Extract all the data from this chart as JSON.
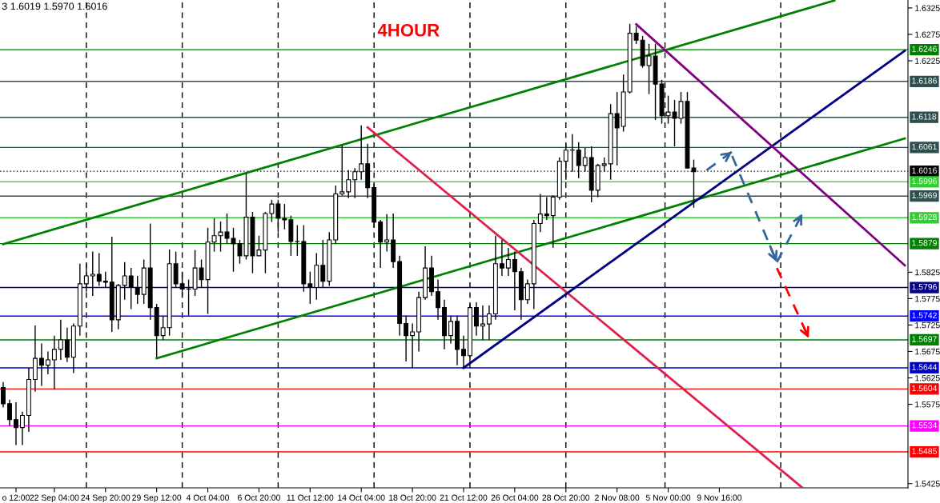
{
  "chart_data": {
    "type": "candlestick",
    "title": "4HOUR",
    "annotations": [
      "3 1.6019 1.5970 1.6016"
    ],
    "categories": [
      null,
      null,
      "o 12:00",
      null,
      null,
      null,
      null,
      null,
      "22 Sep 04:00",
      null,
      null,
      null,
      null,
      null,
      null,
      null,
      "24 Sep 20:00",
      null,
      null,
      null,
      null,
      null,
      null,
      null,
      "29 Sep 12:00",
      null,
      null,
      null,
      null,
      null,
      null,
      null,
      "4 Oct 04:00",
      null,
      null,
      null,
      null,
      null,
      null,
      null,
      "6 Oct 20:00",
      null,
      null,
      null,
      null,
      null,
      null,
      null,
      "11 Oct 12:00",
      null,
      null,
      null,
      null,
      null,
      null,
      null,
      "14 Oct 04:00",
      null,
      null,
      null,
      null,
      null,
      null,
      null,
      "18 Oct 20:00",
      null,
      null,
      null,
      null,
      null,
      null,
      null,
      "21 Oct 12:00",
      null,
      null,
      null,
      null,
      null,
      null,
      null,
      "26 Oct 04:00",
      null,
      null,
      null,
      null,
      null,
      null,
      null,
      "28 Oct 20:00",
      null,
      null,
      null,
      null,
      null,
      null,
      null,
      "2 Nov 08:00",
      null,
      null,
      null,
      null,
      null,
      null,
      null,
      "5 Nov 00:00",
      null,
      null,
      null,
      null,
      null,
      null,
      null,
      "9 Nov 16:00",
      null,
      null,
      null,
      null,
      null,
      null,
      null,
      null,
      null,
      null,
      null,
      null,
      null,
      null,
      null,
      null,
      null,
      null,
      null,
      null,
      null,
      null,
      null,
      null,
      null,
      null,
      null,
      null,
      null
    ],
    "ohlc": [
      [
        1.5607,
        1.5617,
        1.5569,
        1.5576
      ],
      [
        1.5576,
        1.5584,
        1.5534,
        1.5546
      ],
      [
        1.5546,
        1.5579,
        1.5498,
        1.5531
      ],
      [
        1.5531,
        1.5561,
        1.5498,
        1.5554
      ],
      [
        1.5554,
        1.5644,
        1.5523,
        1.5622
      ],
      [
        1.5622,
        1.5724,
        1.5599,
        1.5662
      ],
      [
        1.5662,
        1.569,
        1.561,
        1.5649
      ],
      [
        1.5649,
        1.5675,
        1.5632,
        1.5659
      ],
      [
        1.5659,
        1.5705,
        1.5603,
        1.5679
      ],
      [
        1.5679,
        1.5735,
        1.5659,
        1.5697
      ],
      [
        1.5697,
        1.572,
        1.5655,
        1.5664
      ],
      [
        1.5664,
        1.5728,
        1.5634,
        1.5723
      ],
      [
        1.5723,
        1.5841,
        1.5705,
        1.5803
      ],
      [
        1.5803,
        1.5841,
        1.5788,
        1.5818
      ],
      [
        1.5818,
        1.5864,
        1.578,
        1.5821
      ],
      [
        1.5821,
        1.5861,
        1.5799,
        1.5808
      ],
      [
        1.5808,
        1.5826,
        1.5796,
        1.5806
      ],
      [
        1.5806,
        1.5892,
        1.5712,
        1.5735
      ],
      [
        1.5735,
        1.5803,
        1.5717,
        1.58
      ],
      [
        1.58,
        1.5844,
        1.5773,
        1.5818
      ],
      [
        1.5818,
        1.5833,
        1.5755,
        1.5796
      ],
      [
        1.5796,
        1.5818,
        1.5765,
        1.5783
      ],
      [
        1.5783,
        1.5849,
        1.5765,
        1.5833
      ],
      [
        1.5833,
        1.5917,
        1.5735,
        1.5758
      ],
      [
        1.5758,
        1.5765,
        1.5664,
        1.5705
      ],
      [
        1.5705,
        1.5743,
        1.5697,
        1.572
      ],
      [
        1.572,
        1.5868,
        1.5705,
        1.5841
      ],
      [
        1.5841,
        1.5864,
        1.5796,
        1.5803
      ],
      [
        1.5803,
        1.5826,
        1.578,
        1.5793
      ],
      [
        1.5793,
        1.5811,
        1.5743,
        1.5793
      ],
      [
        1.5793,
        1.5867,
        1.578,
        1.5833
      ],
      [
        1.5833,
        1.5849,
        1.5796,
        1.5811
      ],
      [
        1.5811,
        1.5909,
        1.5746,
        1.5882
      ],
      [
        1.5882,
        1.5927,
        1.5864,
        1.5894
      ],
      [
        1.5894,
        1.5921,
        1.5864,
        1.5901
      ],
      [
        1.5901,
        1.5936,
        1.5879,
        1.5889
      ],
      [
        1.5889,
        1.5909,
        1.5826,
        1.5879
      ],
      [
        1.5879,
        1.5886,
        1.5841,
        1.5856
      ],
      [
        1.5856,
        1.6012,
        1.5849,
        1.5929
      ],
      [
        1.5929,
        1.5939,
        1.5823,
        1.5856
      ],
      [
        1.5856,
        1.5894,
        1.5856,
        1.5867
      ],
      [
        1.5867,
        1.5939,
        1.5823,
        1.5936
      ],
      [
        1.5936,
        1.5962,
        1.592,
        1.5954
      ],
      [
        1.5954,
        1.5962,
        1.5901,
        1.5927
      ],
      [
        1.5927,
        1.5954,
        1.5906,
        1.5924
      ],
      [
        1.5924,
        1.5932,
        1.5856,
        1.5883
      ],
      [
        1.5883,
        1.5914,
        1.5856,
        1.5883
      ],
      [
        1.5883,
        1.5914,
        1.5788,
        1.5803
      ],
      [
        1.5803,
        1.5826,
        1.5765,
        1.5796
      ],
      [
        1.5796,
        1.5861,
        1.5773,
        1.5838
      ],
      [
        1.5838,
        1.5886,
        1.5796,
        1.5808
      ],
      [
        1.5808,
        1.5901,
        1.5799,
        1.5886
      ],
      [
        1.5886,
        1.5989,
        1.5879,
        1.5973
      ],
      [
        1.5973,
        1.6065,
        1.597,
        1.5977
      ],
      [
        1.5977,
        1.6018,
        1.5965,
        1.6
      ],
      [
        1.6,
        1.6022,
        1.5965,
        1.6015
      ],
      [
        1.6015,
        1.6103,
        1.6,
        1.603
      ],
      [
        1.603,
        1.6068,
        1.5965,
        1.5985
      ],
      [
        1.5985,
        1.5992,
        1.5909,
        1.592
      ],
      [
        1.592,
        1.5924,
        1.5833,
        1.5882
      ],
      [
        1.5882,
        1.5935,
        1.5864,
        1.5886
      ],
      [
        1.5886,
        1.5936,
        1.5833,
        1.5845
      ],
      [
        1.5845,
        1.5856,
        1.5705,
        1.5728
      ],
      [
        1.5728,
        1.5743,
        1.5656,
        1.5705
      ],
      [
        1.5705,
        1.5728,
        1.5644,
        1.5712
      ],
      [
        1.5712,
        1.5788,
        1.5675,
        1.5777
      ],
      [
        1.5777,
        1.5874,
        1.5773,
        1.5833
      ],
      [
        1.5833,
        1.5856,
        1.578,
        1.5788
      ],
      [
        1.5788,
        1.5811,
        1.5735,
        1.5758
      ],
      [
        1.5758,
        1.5773,
        1.5679,
        1.5705
      ],
      [
        1.5705,
        1.5743,
        1.569,
        1.5732
      ],
      [
        1.5732,
        1.5743,
        1.5649,
        1.5679
      ],
      [
        1.5679,
        1.5705,
        1.5643,
        1.5667
      ],
      [
        1.5667,
        1.5765,
        1.5652,
        1.5758
      ],
      [
        1.5758,
        1.5768,
        1.5705,
        1.5723
      ],
      [
        1.5723,
        1.5762,
        1.5697,
        1.5727
      ],
      [
        1.5727,
        1.5762,
        1.5697,
        1.5746
      ],
      [
        1.5746,
        1.5894,
        1.5735,
        1.5841
      ],
      [
        1.5841,
        1.5886,
        1.5818,
        1.5833
      ],
      [
        1.5833,
        1.5871,
        1.5818,
        1.5849
      ],
      [
        1.5849,
        1.5864,
        1.5753,
        1.5826
      ],
      [
        1.5826,
        1.5833,
        1.5735,
        1.5773
      ],
      [
        1.5773,
        1.5811,
        1.5765,
        1.5803
      ],
      [
        1.5803,
        1.5924,
        1.5755,
        1.5917
      ],
      [
        1.5917,
        1.5973,
        1.5901,
        1.5935
      ],
      [
        1.5935,
        1.5967,
        1.5924,
        1.5932
      ],
      [
        1.5932,
        1.597,
        1.5871,
        1.5967
      ],
      [
        1.5967,
        1.6042,
        1.5962,
        1.6035
      ],
      [
        1.6035,
        1.6068,
        1.6,
        1.6056
      ],
      [
        1.6056,
        1.6086,
        1.6015,
        1.6056
      ],
      [
        1.6056,
        1.6071,
        1.6003,
        1.6027
      ],
      [
        1.6027,
        1.606,
        1.6015,
        1.6042
      ],
      [
        1.6042,
        1.6063,
        1.5957,
        1.598
      ],
      [
        1.598,
        1.603,
        1.5967,
        1.6027
      ],
      [
        1.6027,
        1.6042,
        1.6015,
        1.603
      ],
      [
        1.603,
        1.6143,
        1.6,
        1.6125
      ],
      [
        1.6125,
        1.6166,
        1.6027,
        1.6098
      ],
      [
        1.6101,
        1.6199,
        1.6091,
        1.6166
      ],
      [
        1.6166,
        1.6295,
        1.6163,
        1.6277
      ],
      [
        1.6277,
        1.629,
        1.6257,
        1.6264
      ],
      [
        1.6264,
        1.6272,
        1.6212,
        1.6216
      ],
      [
        1.6216,
        1.6257,
        1.6162,
        1.6234
      ],
      [
        1.6234,
        1.6257,
        1.6113,
        1.6181
      ],
      [
        1.6181,
        1.6189,
        1.6106,
        1.6121
      ],
      [
        1.6121,
        1.6159,
        1.6106,
        1.6128
      ],
      [
        1.6128,
        1.6151,
        1.6063,
        1.6116
      ],
      [
        1.6116,
        1.6166,
        1.6106,
        1.6148
      ],
      [
        1.6148,
        1.6166,
        1.6022,
        1.6022
      ],
      [
        1.6022,
        1.6038,
        1.5947,
        1.6015
      ],
      null,
      null,
      null,
      null,
      null,
      null,
      null,
      null,
      null,
      null,
      null,
      null,
      null,
      null,
      null,
      null,
      null,
      null,
      null,
      null,
      null,
      null,
      null,
      null,
      null,
      null,
      null,
      null,
      null,
      null,
      null,
      null,
      null
    ],
    "ylim": [
      1.5417,
      1.634
    ],
    "yticks": [
      1.5425,
      1.5575,
      1.5625,
      1.5675,
      1.5725,
      1.5775,
      1.5825,
      1.6225,
      1.6275,
      1.6325
    ],
    "series": [
      {
        "type": "line",
        "color": "#008000",
        "line_style": "solid",
        "values": [
          1.5878,
          null,
          null,
          null,
          null,
          null,
          null,
          null,
          null,
          null,
          null,
          null,
          null,
          null,
          null,
          null,
          null,
          null,
          null,
          null,
          null,
          null,
          null,
          null,
          null,
          null,
          null,
          null,
          null,
          null,
          null,
          null,
          null,
          null,
          null,
          null,
          null,
          null,
          null,
          null,
          null,
          null,
          null,
          null,
          null,
          null,
          null,
          null,
          null,
          null,
          null,
          null,
          null,
          null,
          null,
          null,
          null,
          null,
          null,
          null,
          null,
          null,
          null,
          null,
          null,
          null,
          null,
          null,
          null,
          null,
          null,
          null,
          null,
          null,
          null,
          null,
          null,
          null,
          null,
          null,
          null,
          null,
          null,
          null,
          null,
          null,
          null,
          null,
          null,
          null,
          null,
          null,
          null,
          null,
          null,
          null,
          null,
          null,
          null,
          null,
          null,
          null,
          null,
          null,
          null,
          null,
          null,
          null,
          null,
          null,
          null,
          null,
          null,
          null,
          null,
          null,
          null,
          null,
          null,
          null,
          null,
          null,
          null,
          null,
          null,
          null,
          null,
          null,
          null,
          null,
          1.6339,
          null,
          null,
          null,
          null,
          null,
          null,
          null,
          null,
          null,
          null,
          null
        ]
      },
      {
        "type": "line",
        "color": "#008000",
        "line_style": "solid",
        "values": [
          null,
          null,
          null,
          null,
          null,
          null,
          null,
          null,
          null,
          null,
          null,
          null,
          null,
          null,
          null,
          null,
          null,
          null,
          null,
          null,
          null,
          null,
          null,
          null,
          1.5662,
          null,
          null,
          null,
          null,
          null,
          null,
          null,
          null,
          null,
          null,
          null,
          null,
          null,
          null,
          null,
          null,
          null,
          null,
          null,
          null,
          null,
          null,
          null,
          null,
          null,
          null,
          null,
          null,
          null,
          null,
          null,
          null,
          null,
          null,
          null,
          null,
          null,
          null,
          null,
          null,
          null,
          null,
          null,
          null,
          null,
          null,
          null,
          null,
          null,
          null,
          null,
          null,
          null,
          null,
          null,
          null,
          null,
          null,
          null,
          null,
          null,
          null,
          null,
          null,
          null,
          null,
          null,
          null,
          null,
          null,
          null,
          null,
          null,
          null,
          null,
          null,
          null,
          null,
          null,
          null,
          null,
          null,
          null,
          null,
          null,
          null,
          null,
          null,
          null,
          null,
          null,
          null,
          null,
          null,
          null,
          null,
          null,
          null,
          null,
          null,
          null,
          null,
          null,
          null,
          null,
          null,
          null,
          null,
          null,
          null,
          null,
          null,
          null,
          null,
          null,
          null,
          1.6078
        ]
      },
      {
        "type": "line",
        "color": "#e0204a",
        "line_style": "solid",
        "values": [
          null,
          null,
          null,
          null,
          null,
          null,
          null,
          null,
          null,
          null,
          null,
          null,
          null,
          null,
          null,
          null,
          null,
          null,
          null,
          null,
          null,
          null,
          null,
          null,
          null,
          null,
          null,
          null,
          null,
          null,
          null,
          null,
          null,
          null,
          null,
          null,
          null,
          null,
          null,
          null,
          null,
          null,
          null,
          null,
          null,
          null,
          null,
          null,
          null,
          null,
          null,
          null,
          null,
          null,
          null,
          null,
          null,
          1.6099,
          null,
          null,
          null,
          null,
          null,
          null,
          null,
          null,
          null,
          null,
          null,
          null,
          null,
          null,
          null,
          null,
          null,
          null,
          null,
          null,
          null,
          null,
          null,
          null,
          null,
          null,
          null,
          null,
          null,
          null,
          null,
          null,
          null,
          null,
          null,
          null,
          null,
          null,
          null,
          null,
          null,
          null,
          null,
          null,
          null,
          null,
          null,
          null,
          null,
          null,
          null,
          null,
          null,
          null,
          null,
          null,
          null,
          null,
          null,
          null,
          null,
          null,
          null,
          null,
          null,
          null,
          null,
          1.5417,
          null,
          null,
          null,
          null,
          null,
          null,
          null,
          null,
          null,
          null,
          null,
          null,
          null,
          null,
          null,
          null
        ]
      },
      {
        "type": "line",
        "color": "#000080",
        "line_style": "solid",
        "values": [
          null,
          null,
          null,
          null,
          null,
          null,
          null,
          null,
          null,
          null,
          null,
          null,
          null,
          null,
          null,
          null,
          null,
          null,
          null,
          null,
          null,
          null,
          null,
          null,
          null,
          null,
          null,
          null,
          null,
          null,
          null,
          null,
          null,
          null,
          null,
          null,
          null,
          null,
          null,
          null,
          null,
          null,
          null,
          null,
          null,
          null,
          null,
          null,
          null,
          null,
          null,
          null,
          null,
          null,
          null,
          null,
          null,
          null,
          null,
          null,
          null,
          null,
          null,
          null,
          null,
          null,
          null,
          null,
          null,
          null,
          null,
          null,
          1.5644,
          null,
          null,
          null,
          null,
          null,
          null,
          null,
          null,
          null,
          null,
          null,
          null,
          null,
          null,
          null,
          null,
          null,
          null,
          null,
          null,
          null,
          null,
          null,
          null,
          null,
          null,
          null,
          null,
          null,
          null,
          null,
          null,
          null,
          null,
          null,
          null,
          null,
          null,
          null,
          null,
          null,
          null,
          null,
          null,
          null,
          null,
          null,
          null,
          null,
          null,
          null,
          null,
          null,
          null,
          null,
          null,
          null,
          null,
          null,
          null,
          null,
          null,
          null,
          null,
          null,
          null,
          null,
          null,
          1.6244
        ]
      },
      {
        "type": "line",
        "color": "#800080",
        "line_style": "solid",
        "values": [
          null,
          null,
          null,
          null,
          null,
          null,
          null,
          null,
          null,
          null,
          null,
          null,
          null,
          null,
          null,
          null,
          null,
          null,
          null,
          null,
          null,
          null,
          null,
          null,
          null,
          null,
          null,
          null,
          null,
          null,
          null,
          null,
          null,
          null,
          null,
          null,
          null,
          null,
          null,
          null,
          null,
          null,
          null,
          null,
          null,
          null,
          null,
          null,
          null,
          null,
          null,
          null,
          null,
          null,
          null,
          null,
          null,
          null,
          null,
          null,
          null,
          null,
          null,
          null,
          null,
          null,
          null,
          null,
          null,
          null,
          null,
          null,
          null,
          null,
          null,
          null,
          null,
          null,
          null,
          null,
          null,
          null,
          null,
          null,
          null,
          null,
          null,
          null,
          null,
          null,
          null,
          null,
          null,
          null,
          null,
          null,
          null,
          null,
          null,
          1.6294,
          null,
          null,
          null,
          null,
          null,
          null,
          null,
          null,
          null,
          null,
          null,
          null,
          null,
          null,
          null,
          null,
          null,
          null,
          null,
          null,
          null,
          null,
          null,
          null,
          null,
          null,
          null,
          null,
          null,
          null,
          null,
          null,
          null,
          null,
          null,
          null,
          null,
          null,
          null,
          null,
          null,
          1.5838
        ]
      },
      {
        "type": "line",
        "color": "#336699",
        "line_style": "dashed",
        "values": [
          null,
          null,
          null,
          null,
          null,
          null,
          null,
          null,
          null,
          null,
          null,
          null,
          null,
          null,
          null,
          null,
          null,
          null,
          null,
          null,
          null,
          null,
          null,
          null,
          null,
          null,
          null,
          null,
          null,
          null,
          null,
          null,
          null,
          null,
          null,
          null,
          null,
          null,
          null,
          null,
          null,
          null,
          null,
          null,
          null,
          null,
          null,
          null,
          null,
          null,
          null,
          null,
          null,
          null,
          null,
          null,
          null,
          null,
          null,
          null,
          null,
          null,
          null,
          null,
          null,
          null,
          null,
          null,
          null,
          null,
          null,
          null,
          null,
          null,
          null,
          null,
          null,
          null,
          null,
          null,
          null,
          null,
          null,
          null,
          null,
          null,
          null,
          null,
          null,
          null,
          null,
          null,
          null,
          null,
          null,
          null,
          null,
          null,
          null,
          null,
          null,
          null,
          null,
          null,
          null,
          null,
          null,
          null,
          null,
          null,
          1.6018,
          null,
          null,
          null,
          1.6053,
          null,
          null,
          null,
          null,
          null,
          null,
          null,
          null,
          null,
          null,
          null,
          null,
          null,
          null,
          null,
          null,
          null,
          null,
          null,
          null,
          null,
          null,
          null,
          null,
          null,
          null,
          null
        ]
      },
      {
        "type": "line",
        "color": "#336699",
        "line_style": "dashed",
        "values": [
          null,
          null,
          null,
          null,
          null,
          null,
          null,
          null,
          null,
          null,
          null,
          null,
          null,
          null,
          null,
          null,
          null,
          null,
          null,
          null,
          null,
          null,
          null,
          null,
          null,
          null,
          null,
          null,
          null,
          null,
          null,
          null,
          null,
          null,
          null,
          null,
          null,
          null,
          null,
          null,
          null,
          null,
          null,
          null,
          null,
          null,
          null,
          null,
          null,
          null,
          null,
          null,
          null,
          null,
          null,
          null,
          null,
          null,
          null,
          null,
          null,
          null,
          null,
          null,
          null,
          null,
          null,
          null,
          null,
          null,
          null,
          null,
          null,
          null,
          null,
          null,
          null,
          null,
          null,
          null,
          null,
          null,
          null,
          null,
          null,
          null,
          null,
          null,
          null,
          null,
          null,
          null,
          null,
          null,
          null,
          null,
          null,
          null,
          null,
          null,
          null,
          null,
          null,
          null,
          null,
          null,
          null,
          null,
          null,
          null,
          null,
          null,
          null,
          null,
          1.6045,
          null,
          null,
          null,
          null,
          null,
          null,
          1.5844,
          null,
          null,
          null,
          null,
          null,
          null,
          null,
          null,
          null,
          null,
          null,
          null,
          null,
          null,
          null,
          null,
          null,
          null,
          null,
          null
        ]
      },
      {
        "type": "line",
        "color": "#336699",
        "line_style": "dashed",
        "values": [
          null,
          null,
          null,
          null,
          null,
          null,
          null,
          null,
          null,
          null,
          null,
          null,
          null,
          null,
          null,
          null,
          null,
          null,
          null,
          null,
          null,
          null,
          null,
          null,
          null,
          null,
          null,
          null,
          null,
          null,
          null,
          null,
          null,
          null,
          null,
          null,
          null,
          null,
          null,
          null,
          null,
          null,
          null,
          null,
          null,
          null,
          null,
          null,
          null,
          null,
          null,
          null,
          null,
          null,
          null,
          null,
          null,
          null,
          null,
          null,
          null,
          null,
          null,
          null,
          null,
          null,
          null,
          null,
          null,
          null,
          null,
          null,
          null,
          null,
          null,
          null,
          null,
          null,
          null,
          null,
          null,
          null,
          null,
          null,
          null,
          null,
          null,
          null,
          null,
          null,
          null,
          null,
          null,
          null,
          null,
          null,
          null,
          null,
          null,
          null,
          null,
          null,
          null,
          null,
          null,
          null,
          null,
          null,
          null,
          null,
          null,
          null,
          null,
          null,
          null,
          null,
          null,
          null,
          null,
          null,
          null,
          1.5844,
          null,
          null,
          null,
          1.5936,
          null,
          null,
          null,
          null,
          null,
          null,
          null,
          null,
          null,
          null,
          null,
          null,
          null,
          null,
          null,
          null
        ]
      },
      {
        "type": "line",
        "color": "#ff0000",
        "line_style": "dashed",
        "values": [
          null,
          null,
          null,
          null,
          null,
          null,
          null,
          null,
          null,
          null,
          null,
          null,
          null,
          null,
          null,
          null,
          null,
          null,
          null,
          null,
          null,
          null,
          null,
          null,
          null,
          null,
          null,
          null,
          null,
          null,
          null,
          null,
          null,
          null,
          null,
          null,
          null,
          null,
          null,
          null,
          null,
          null,
          null,
          null,
          null,
          null,
          null,
          null,
          null,
          null,
          null,
          null,
          null,
          null,
          null,
          null,
          null,
          null,
          null,
          null,
          null,
          null,
          null,
          null,
          null,
          null,
          null,
          null,
          null,
          null,
          null,
          null,
          null,
          null,
          null,
          null,
          null,
          null,
          null,
          null,
          null,
          null,
          null,
          null,
          null,
          null,
          null,
          null,
          null,
          null,
          null,
          null,
          null,
          null,
          null,
          null,
          null,
          null,
          null,
          null,
          null,
          null,
          null,
          null,
          null,
          null,
          null,
          null,
          null,
          null,
          null,
          null,
          null,
          null,
          null,
          null,
          null,
          null,
          null,
          null,
          null,
          1.5833,
          null,
          null,
          null,
          null,
          1.57,
          null,
          null,
          null,
          null,
          null,
          null,
          null,
          null,
          null,
          null,
          null,
          null,
          null,
          null,
          null
        ]
      }
    ],
    "ref_lines": [
      {
        "axis": "y",
        "value": 1.6246,
        "label": "1.6246",
        "color": "#008000"
      },
      {
        "axis": "y",
        "value": 1.6186,
        "label": "1.6186",
        "color": "#2f4f4f"
      },
      {
        "axis": "y",
        "value": 1.6118,
        "label": "1.6118",
        "color": "#2f4f4f"
      },
      {
        "axis": "y",
        "value": 1.6061,
        "label": "1.6061",
        "color": "#2f4f4f"
      },
      {
        "axis": "y",
        "value": 1.6016,
        "label": "1.6016",
        "color": "#000000",
        "line_style": "dotted"
      },
      {
        "axis": "y",
        "value": 1.5996,
        "label": "1.5996",
        "color": "#32cd32"
      },
      {
        "axis": "y",
        "value": 1.5969,
        "label": "1.5969",
        "color": "#2f4f4f"
      },
      {
        "axis": "y",
        "value": 1.5928,
        "label": "1.5928",
        "color": "#32cd32"
      },
      {
        "axis": "y",
        "value": 1.5879,
        "label": "1.5879",
        "color": "#008000"
      },
      {
        "axis": "y",
        "value": 1.5796,
        "label": "1.5796",
        "color": "#000080"
      },
      {
        "axis": "y",
        "value": 1.5742,
        "label": "1.5742",
        "color": "#0000ff"
      },
      {
        "axis": "y",
        "value": 1.5697,
        "label": "1.5697",
        "color": "#008000"
      },
      {
        "axis": "y",
        "value": 1.5644,
        "label": "1.5644",
        "color": "#0000cd"
      },
      {
        "axis": "y",
        "value": 1.5604,
        "label": "1.5604",
        "color": "#ff0000"
      },
      {
        "axis": "y",
        "value": 1.5534,
        "label": "1.5534",
        "color": "#ff00ff"
      },
      {
        "axis": "y",
        "value": 1.5485,
        "label": "1.5485",
        "color": "#ff0000"
      }
    ]
  }
}
